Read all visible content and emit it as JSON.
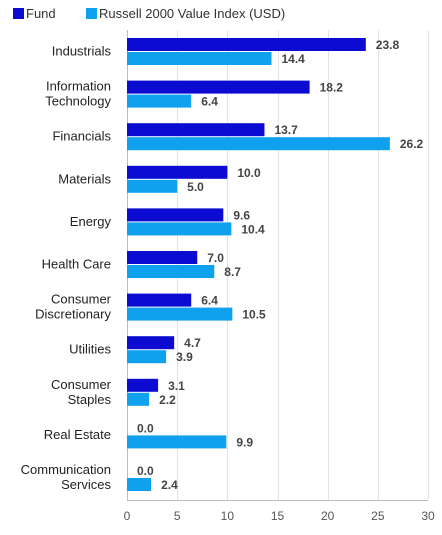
{
  "chart_data": {
    "type": "bar",
    "orientation": "horizontal",
    "categories": [
      "Industrials",
      "Information Technology",
      "Financials",
      "Materials",
      "Energy",
      "Health Care",
      "Consumer Discretionary",
      "Utilities",
      "Consumer Staples",
      "Real Estate",
      "Communication Services"
    ],
    "category_lines": [
      [
        "Industrials"
      ],
      [
        "Information",
        "Technology"
      ],
      [
        "Financials"
      ],
      [
        "Materials"
      ],
      [
        "Energy"
      ],
      [
        "Health Care"
      ],
      [
        "Consumer",
        "Discretionary"
      ],
      [
        "Utilities"
      ],
      [
        "Consumer",
        "Staples"
      ],
      [
        "Real Estate"
      ],
      [
        "Communication",
        "Services"
      ]
    ],
    "series": [
      {
        "name": "Fund",
        "color": "#0b0bd1",
        "values": [
          23.8,
          18.2,
          13.7,
          10.0,
          9.6,
          7.0,
          6.4,
          4.7,
          3.1,
          0.0,
          0.0
        ],
        "labels": [
          "23.8",
          "18.2",
          "13.7",
          "10.0",
          "9.6",
          "7.0",
          "6.4",
          "4.7",
          "3.1",
          "0.0",
          "0.0"
        ]
      },
      {
        "name": "Russell 2000 Value Index (USD)",
        "color": "#0fa0ee",
        "values": [
          14.4,
          6.4,
          26.2,
          5.0,
          10.4,
          8.7,
          10.5,
          3.9,
          2.2,
          9.9,
          2.4
        ],
        "labels": [
          "14.4",
          "6.4",
          "26.2",
          "5.0",
          "10.4",
          "8.7",
          "10.5",
          "3.9",
          "2.2",
          "9.9",
          "2.4"
        ]
      }
    ],
    "xlim": [
      0,
      30
    ],
    "xticks": [
      0,
      5,
      10,
      15,
      20,
      25,
      30
    ],
    "xtick_labels": [
      "0",
      "5",
      "10",
      "15",
      "20",
      "25",
      "30"
    ],
    "grid": true,
    "legend_position": "top-left",
    "title": "",
    "xlabel": "",
    "ylabel": ""
  }
}
